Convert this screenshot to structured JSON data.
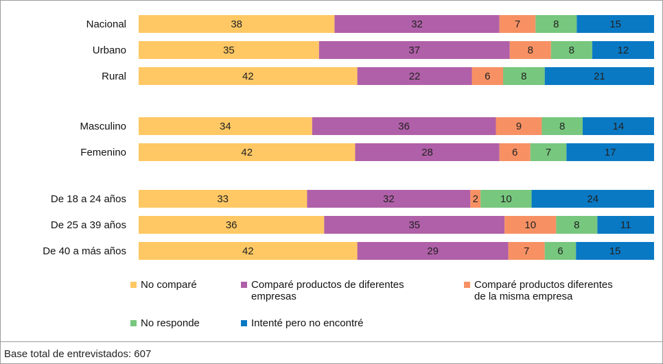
{
  "chart_data": {
    "type": "bar",
    "orientation": "horizontal",
    "stacked": true,
    "categories": [
      "Nacional",
      "Urbano",
      "Rural",
      "Masculino",
      "Femenino",
      "De 18 a 24 años",
      "De  25 a 39 años",
      "De 40 a más años"
    ],
    "groups": [
      [
        0,
        1,
        2
      ],
      [
        3,
        4
      ],
      [
        5,
        6,
        7
      ]
    ],
    "series": [
      {
        "name": "No comparé",
        "color": "#FFC864",
        "values": [
          38,
          35,
          42,
          34,
          42,
          33,
          36,
          42
        ]
      },
      {
        "name": "Comparé productos de diferentes empresas",
        "color": "#B060A8",
        "values": [
          32,
          37,
          22,
          36,
          28,
          32,
          35,
          29
        ]
      },
      {
        "name": "Comparé productos diferentes de la misma empresa",
        "color": "#F79164",
        "values": [
          7,
          8,
          6,
          9,
          6,
          2,
          10,
          7
        ]
      },
      {
        "name": "No responde",
        "color": "#77C77E",
        "values": [
          8,
          8,
          8,
          8,
          7,
          10,
          8,
          6
        ]
      },
      {
        "name": "Intenté pero no encontré",
        "color": "#0A79C4",
        "values": [
          15,
          12,
          21,
          14,
          17,
          24,
          11,
          15
        ]
      }
    ],
    "legend": [
      {
        "line1": "No comparé",
        "line2": ""
      },
      {
        "line1": "Comparé productos de diferentes",
        "line2": "empresas"
      },
      {
        "line1": "Comparé productos diferentes",
        "line2": "de la misma empresa"
      },
      {
        "line1": "No responde",
        "line2": ""
      },
      {
        "line1": "Intenté pero no encontré",
        "line2": ""
      }
    ],
    "legend_position": "bottom",
    "grid": false,
    "xlim": [
      0,
      100
    ]
  },
  "footnote": "Base total de entrevistados: 607"
}
